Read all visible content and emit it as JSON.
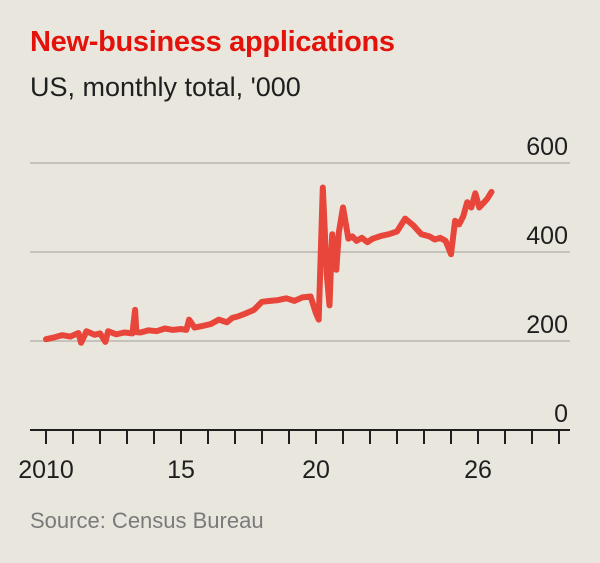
{
  "title": "New-business applications",
  "subtitle": "US, monthly total, '000",
  "source": "Source: Census Bureau",
  "colors": {
    "line": "#e8463a",
    "title": "#e3120b",
    "grid": "#c4c2ba",
    "axis": "#1f1f1f"
  },
  "chart_data": {
    "type": "line",
    "title": "New-business applications",
    "subtitle": "US, monthly total, '000",
    "ylim": [
      0,
      600
    ],
    "yticks": [
      0,
      200,
      400,
      600
    ],
    "xlim": [
      2009.5,
      2030
    ],
    "xtick_labels": [
      {
        "value": 2010,
        "label": "2010"
      },
      {
        "value": 2015,
        "label": "15"
      },
      {
        "value": 2020,
        "label": "20"
      },
      {
        "value": 2026,
        "label": "26"
      }
    ],
    "grid": true,
    "series": [
      {
        "x": [
          2010.0,
          2010.3,
          2010.6,
          2010.9,
          2011.2,
          2011.3,
          2011.5,
          2011.8,
          2012.0,
          2012.2,
          2012.3,
          2012.6,
          2012.9,
          2013.2,
          2013.3,
          2013.35,
          2013.5,
          2013.8,
          2014.1,
          2014.4,
          2014.7,
          2015.0,
          2015.2,
          2015.3,
          2015.5,
          2015.8,
          2016.1,
          2016.4,
          2016.7,
          2016.9,
          2017.1,
          2017.4,
          2017.7,
          2018.0,
          2018.3,
          2018.6,
          2018.9,
          2019.2,
          2019.5,
          2019.8,
          2020.0,
          2020.1,
          2020.25,
          2020.4,
          2020.5,
          2020.6,
          2020.75,
          2020.85,
          2021.0,
          2021.2,
          2021.35,
          2021.5,
          2021.7,
          2021.9,
          2022.1,
          2022.4,
          2022.7,
          2023.0,
          2023.3,
          2023.6,
          2023.9,
          2024.2,
          2024.4,
          2024.6,
          2024.8,
          2025.0,
          2025.15,
          2025.3,
          2025.45,
          2025.6,
          2025.75,
          2025.9,
          2026.05,
          2026.2,
          2026.35,
          2026.5
        ],
        "values": [
          204,
          208,
          213,
          210,
          218,
          196,
          222,
          214,
          217,
          198,
          222,
          215,
          219,
          217,
          270,
          220,
          219,
          224,
          222,
          228,
          225,
          227,
          225,
          248,
          230,
          234,
          238,
          248,
          242,
          252,
          255,
          262,
          270,
          288,
          290,
          292,
          296,
          290,
          298,
          300,
          262,
          248,
          545,
          348,
          280,
          440,
          360,
          445,
          500,
          430,
          435,
          425,
          432,
          422,
          430,
          436,
          440,
          446,
          475,
          460,
          440,
          435,
          428,
          432,
          425,
          395,
          470,
          462,
          480,
          512,
          500,
          532,
          500,
          510,
          520,
          535
        ]
      }
    ]
  }
}
